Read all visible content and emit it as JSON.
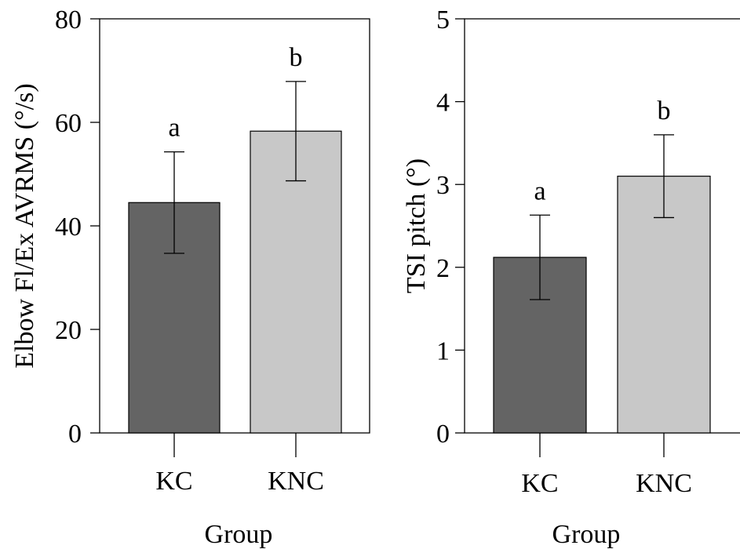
{
  "chart_data": [
    {
      "type": "bar",
      "categories": [
        "KC",
        "KNC"
      ],
      "values": [
        44.5,
        58.3
      ],
      "errors": [
        9.8,
        9.6
      ],
      "significance": [
        "a",
        "b"
      ],
      "xlabel": "Group",
      "ylabel": "Elbow Fl/Ex AVRMS (°/s)",
      "ylim": [
        0,
        80
      ],
      "yticks": [
        0,
        20,
        40,
        60,
        80
      ],
      "colors": [
        "#646464",
        "#c8c8c8"
      ]
    },
    {
      "type": "bar",
      "categories": [
        "KC",
        "KNC"
      ],
      "values": [
        2.12,
        3.1
      ],
      "errors": [
        0.51,
        0.5
      ],
      "significance": [
        "a",
        "b"
      ],
      "xlabel": "Group",
      "ylabel": "TSI pitch (°)",
      "ylim": [
        0,
        5
      ],
      "yticks": [
        0,
        1,
        2,
        3,
        4,
        5
      ],
      "colors": [
        "#646464",
        "#c8c8c8"
      ]
    }
  ]
}
